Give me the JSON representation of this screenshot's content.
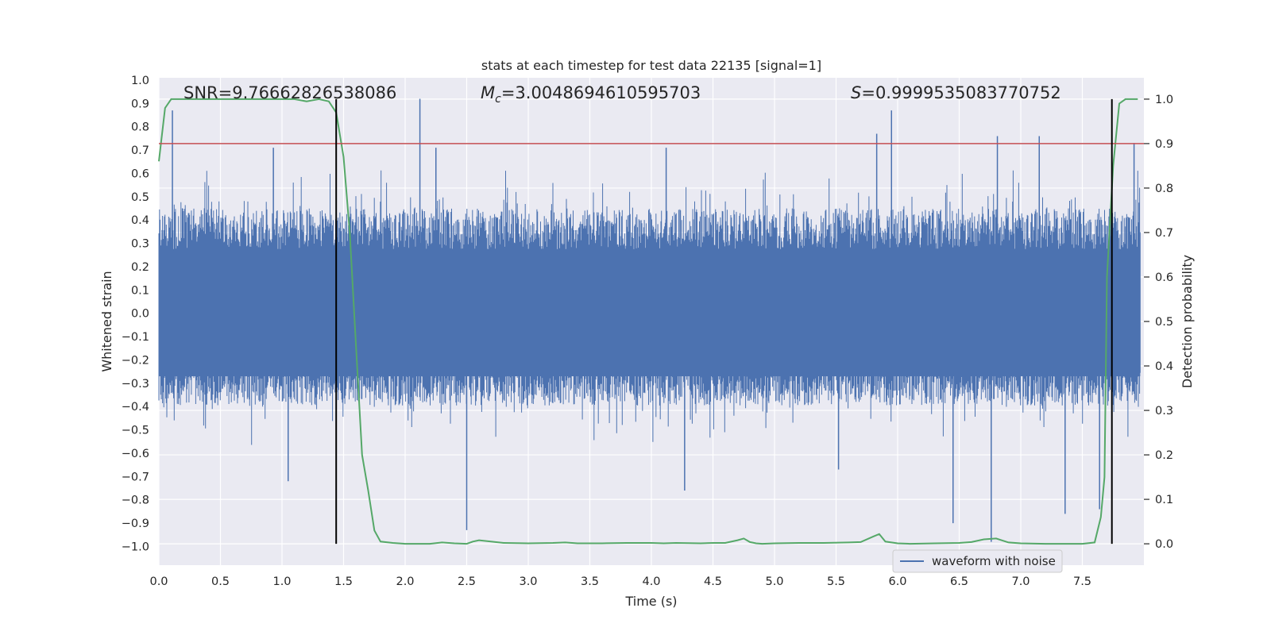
{
  "chart_data": {
    "type": "line",
    "title": "stats at each timestep for test data 22135 [signal=1]",
    "xlabel": "Time (s)",
    "ylabel_left": "Whitened strain",
    "ylabel_right": "Detection probability",
    "xlim": [
      0.0,
      8.0
    ],
    "ylim_left": [
      -1.08,
      1.01
    ],
    "ylim_right": [
      -0.048,
      1.048
    ],
    "x_ticks": [
      "0.0",
      "0.5",
      "1.0",
      "1.5",
      "2.0",
      "2.5",
      "3.0",
      "3.5",
      "4.0",
      "4.5",
      "5.0",
      "5.5",
      "6.0",
      "6.5",
      "7.0",
      "7.5"
    ],
    "left_ticks": [
      "1.0",
      "0.9",
      "0.8",
      "0.7",
      "0.6",
      "0.5",
      "0.4",
      "0.3",
      "0.2",
      "0.1",
      "0.0",
      "−0.1",
      "−0.2",
      "−0.3",
      "−0.4",
      "−0.5",
      "−0.6",
      "−0.7",
      "−0.8",
      "−0.9",
      "−1.0"
    ],
    "right_ticks": [
      "1.0",
      "0.9",
      "0.8",
      "0.7",
      "0.6",
      "0.5",
      "0.4",
      "0.3",
      "0.2",
      "0.1",
      "0.0"
    ],
    "grid": true,
    "legend_position": "lower-right",
    "annotations": {
      "snr_text": "SNR=9.76662826538086",
      "mc_symbol": "M",
      "mc_sub": "c",
      "mc_value": "=3.0048694610595703",
      "s_symbol": "S",
      "s_value": "=0.9999535083770752"
    },
    "threshold_prob": 0.9,
    "event_markers_x": [
      1.44,
      7.74
    ],
    "series": [
      {
        "name": "waveform with noise",
        "axis": "left",
        "color": "#4c72b0",
        "render": "dense-noise",
        "sample_count": 1600,
        "envelope": [
          -0.44,
          0.5
        ],
        "spikes": [
          {
            "x": 0.11,
            "y": 0.87
          },
          {
            "x": 0.93,
            "y": 0.71
          },
          {
            "x": 1.05,
            "y": -0.72
          },
          {
            "x": 2.12,
            "y": 0.92
          },
          {
            "x": 2.25,
            "y": 0.71
          },
          {
            "x": 2.5,
            "y": -0.93
          },
          {
            "x": 4.12,
            "y": 0.71
          },
          {
            "x": 4.27,
            "y": -0.76
          },
          {
            "x": 5.52,
            "y": -0.67
          },
          {
            "x": 5.83,
            "y": 0.77
          },
          {
            "x": 5.95,
            "y": 0.87
          },
          {
            "x": 6.45,
            "y": -0.9
          },
          {
            "x": 6.76,
            "y": -0.98
          },
          {
            "x": 6.81,
            "y": 0.76
          },
          {
            "x": 7.15,
            "y": 0.76
          },
          {
            "x": 7.36,
            "y": -0.86
          },
          {
            "x": 7.64,
            "y": -0.84
          },
          {
            "x": 7.92,
            "y": 0.73
          }
        ]
      },
      {
        "name": "",
        "axis": "right",
        "color": "#55a868",
        "x": [
          0.0,
          0.05,
          0.1,
          0.15,
          0.2,
          0.3,
          0.4,
          0.5,
          0.6,
          0.7,
          0.8,
          0.9,
          1.0,
          1.1,
          1.2,
          1.3,
          1.38,
          1.44,
          1.5,
          1.55,
          1.6,
          1.65,
          1.7,
          1.75,
          1.8,
          1.9,
          2.0,
          2.2,
          2.3,
          2.4,
          2.5,
          2.55,
          2.6,
          2.8,
          3.0,
          3.2,
          3.3,
          3.4,
          3.6,
          3.8,
          4.0,
          4.1,
          4.2,
          4.4,
          4.5,
          4.6,
          4.7,
          4.75,
          4.8,
          4.85,
          4.9,
          5.0,
          5.2,
          5.4,
          5.6,
          5.7,
          5.8,
          5.85,
          5.9,
          6.0,
          6.1,
          6.3,
          6.5,
          6.6,
          6.7,
          6.8,
          6.9,
          7.0,
          7.2,
          7.4,
          7.5,
          7.6,
          7.65,
          7.68,
          7.7,
          7.75,
          7.8,
          7.85,
          7.9,
          7.95
        ],
        "values": [
          0.86,
          0.98,
          1.0,
          1.0,
          1.0,
          1.0,
          1.0,
          1.0,
          1.0,
          1.0,
          1.0,
          1.0,
          1.0,
          1.0,
          0.995,
          1.0,
          0.995,
          0.97,
          0.87,
          0.7,
          0.45,
          0.2,
          0.12,
          0.03,
          0.005,
          0.002,
          0.0,
          0.0,
          0.003,
          0.001,
          0.0,
          0.005,
          0.008,
          0.002,
          0.001,
          0.002,
          0.003,
          0.001,
          0.001,
          0.002,
          0.002,
          0.001,
          0.002,
          0.001,
          0.002,
          0.002,
          0.008,
          0.012,
          0.004,
          0.001,
          0.0,
          0.001,
          0.002,
          0.002,
          0.003,
          0.004,
          0.016,
          0.022,
          0.005,
          0.001,
          0.0,
          0.001,
          0.002,
          0.004,
          0.01,
          0.012,
          0.003,
          0.001,
          0.0,
          0.0,
          0.0,
          0.003,
          0.06,
          0.15,
          0.6,
          0.85,
          0.99,
          1.0,
          1.0,
          1.0
        ]
      }
    ]
  }
}
